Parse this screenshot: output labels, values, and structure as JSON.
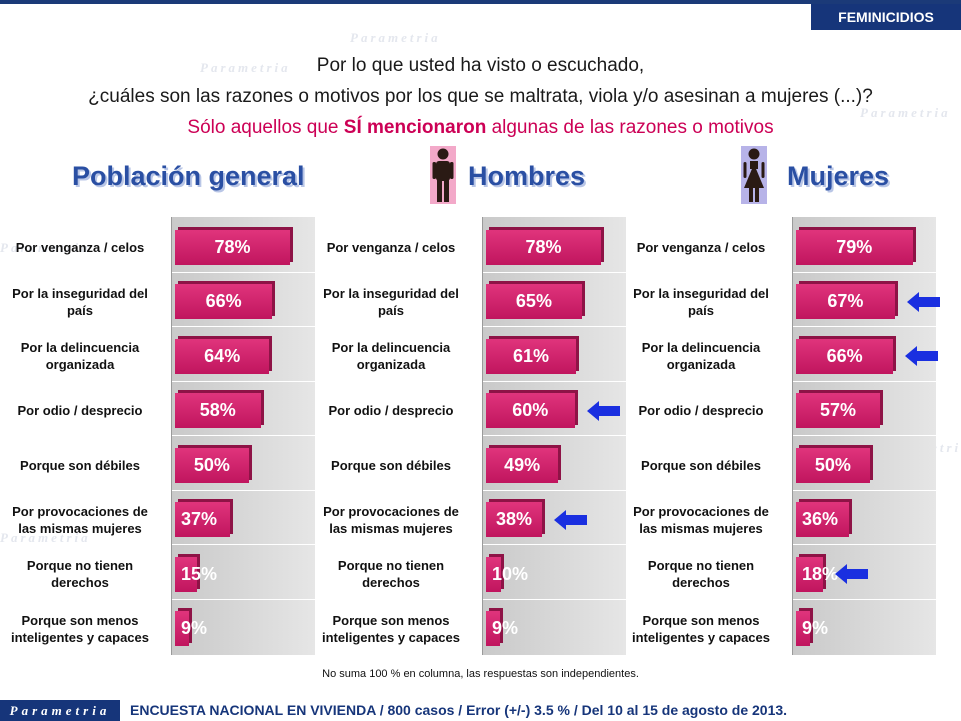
{
  "header": {
    "tag": "FEMINICIDIOS"
  },
  "question": {
    "line1": "Por lo que usted  ha visto o escuchado,",
    "line2": "¿cuáles son las razones o motivos por los que se maltrata, viola y/o asesinan a mujeres (...)?",
    "line3_prefix": "Sólo aquellos que ",
    "line3_bold": "SÍ mencionaron",
    "line3_suffix": " algunas de las razones o motivos"
  },
  "watermark": "Parametria",
  "colors": {
    "bar": "#d22a6e",
    "title": "#2a4fa3",
    "arrow": "#1a2fe0",
    "header": "#16357a"
  },
  "chart_data": [
    {
      "type": "bar",
      "title": "Población general",
      "categories": [
        "Por venganza / celos",
        "Por la inseguridad del país",
        "Por la delincuencia organizada",
        "Por odio / desprecio",
        "Porque son débiles",
        "Por provocaciones de las mismas mujeres",
        "Porque no tienen derechos",
        "Porque son menos inteligentes y capaces"
      ],
      "values": [
        78,
        66,
        64,
        58,
        50,
        37,
        15,
        9
      ],
      "value_labels": [
        "78%",
        "66%",
        "64%",
        "58%",
        "50%",
        "37%",
        "15%",
        "9%"
      ],
      "highlighted": [],
      "xlim": [
        0,
        100
      ]
    },
    {
      "type": "bar",
      "title": "Hombres",
      "categories": [
        "Por venganza / celos",
        "Por la inseguridad del país",
        "Por la delincuencia organizada",
        "Por odio / desprecio",
        "Porque son débiles",
        "Por provocaciones de las mismas mujeres",
        "Porque no tienen derechos",
        "Porque son menos inteligentes y capaces"
      ],
      "values": [
        78,
        65,
        61,
        60,
        49,
        38,
        10,
        9
      ],
      "value_labels": [
        "78%",
        "65%",
        "61%",
        "60%",
        "49%",
        "38%",
        "10%",
        "9%"
      ],
      "highlighted": [
        3,
        5
      ],
      "xlim": [
        0,
        100
      ]
    },
    {
      "type": "bar",
      "title": "Mujeres",
      "categories": [
        "Por venganza / celos",
        "Por la inseguridad del país",
        "Por la delincuencia organizada",
        "Por odio / desprecio",
        "Porque son débiles",
        "Por provocaciones de las mismas mujeres",
        "Porque no tienen derechos",
        "Porque son menos inteligentes y capaces"
      ],
      "values": [
        79,
        67,
        66,
        57,
        50,
        36,
        18,
        9
      ],
      "value_labels": [
        "79%",
        "67%",
        "66%",
        "57%",
        "50%",
        "36%",
        "18%",
        "9%"
      ],
      "highlighted": [
        1,
        2,
        6
      ],
      "xlim": [
        0,
        100
      ]
    }
  ],
  "icons": {
    "men": "man-icon",
    "women": "woman-icon",
    "highlight": "arrow-left-icon"
  },
  "footnote": "No suma 100 % en columna, las respuestas son independientes.",
  "footer": {
    "logo": "Parametria",
    "text": "ENCUESTA NACIONAL EN VIVIENDA / 800 casos / Error (+/-) 3.5 % / Del 10 al 15 de agosto de 2013."
  }
}
